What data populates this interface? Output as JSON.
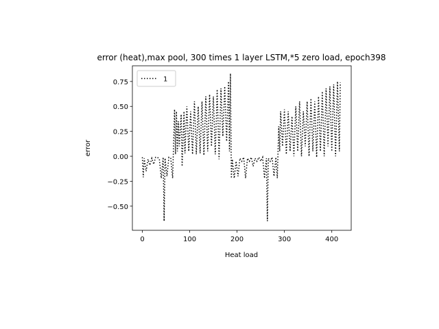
{
  "chart_data": {
    "type": "line",
    "title": "error (heat),max pool, 300 times 1 layer LSTM,*5 zero load, epoch398",
    "x_label": "Heat load",
    "y_label": "error",
    "x": [
      0,
      2,
      4,
      8,
      12,
      16,
      20,
      24,
      28,
      32,
      36,
      40,
      44,
      46,
      48,
      52,
      56,
      60,
      64,
      68,
      70,
      72,
      74,
      76,
      78,
      82,
      84,
      88,
      90,
      94,
      98,
      102,
      106,
      110,
      114,
      118,
      122,
      126,
      130,
      134,
      138,
      142,
      146,
      150,
      154,
      158,
      162,
      166,
      170,
      174,
      178,
      182,
      184,
      186,
      188,
      190,
      194,
      198,
      202,
      206,
      210,
      214,
      218,
      222,
      226,
      230,
      234,
      238,
      242,
      246,
      250,
      254,
      258,
      262,
      264,
      266,
      270,
      274,
      278,
      282,
      285,
      288,
      290,
      292,
      296,
      300,
      304,
      308,
      312,
      316,
      320,
      324,
      328,
      332,
      336,
      340,
      344,
      348,
      352,
      356,
      360,
      364,
      368,
      372,
      376,
      380,
      384,
      388,
      392,
      396,
      400,
      404,
      408,
      412,
      416,
      418
    ],
    "series": [
      {
        "name": "1",
        "color": "#000000",
        "linestyle": "dotted",
        "values": [
          -0.01,
          -0.21,
          -0.02,
          -0.15,
          -0.03,
          -0.09,
          -0.02,
          -0.08,
          -0.01,
          -0.01,
          -0.03,
          -0.22,
          -0.01,
          -0.65,
          -0.02,
          -0.2,
          -0.01,
          -0.02,
          -0.22,
          0.47,
          0.02,
          0.45,
          0.05,
          0.35,
          0.1,
          0.42,
          -0.1,
          0.45,
          0.03,
          0.5,
          0.05,
          0.45,
          0.02,
          0.55,
          0.02,
          0.5,
          0.03,
          0.55,
          0.01,
          0.6,
          0.05,
          0.62,
          0.1,
          0.6,
          0.02,
          0.67,
          -0.03,
          0.68,
          0.2,
          0.7,
          0.15,
          0.75,
          0.05,
          0.83,
          -0.22,
          -0.03,
          -0.22,
          -0.05,
          -0.2,
          -0.02,
          -0.05,
          -0.01,
          -0.22,
          -0.02,
          -0.05,
          -0.01,
          -0.1,
          -0.02,
          -0.05,
          -0.01,
          -0.05,
          -0.01,
          -0.22,
          -0.02,
          -0.65,
          -0.02,
          -0.05,
          -0.01,
          -0.2,
          -0.01,
          -0.22,
          0.3,
          0.05,
          0.45,
          0.1,
          0.47,
          0.02,
          0.45,
          0.05,
          0.4,
          0.0,
          0.5,
          0.05,
          0.55,
          0.0,
          0.45,
          0.1,
          0.55,
          0.0,
          0.58,
          0.05,
          0.55,
          -0.01,
          0.6,
          0.05,
          0.65,
          0.0,
          0.68,
          0.1,
          0.7,
          0.05,
          0.72,
          0.0,
          0.75,
          0.05,
          0.74
        ]
      }
    ],
    "xlim": [
      -21,
      441
    ],
    "ylim": [
      -0.742,
      0.907
    ],
    "xticks": [
      0,
      100,
      200,
      300,
      400
    ],
    "yticks": [
      {
        "value": -0.5,
        "label": "−0.50"
      },
      {
        "value": -0.25,
        "label": "−0.25"
      },
      {
        "value": 0,
        "label": "0.00"
      },
      0.25,
      {
        "value": 0.5,
        "label": "0.50"
      },
      0.75
    ],
    "legend": "upper left",
    "grid": false
  }
}
